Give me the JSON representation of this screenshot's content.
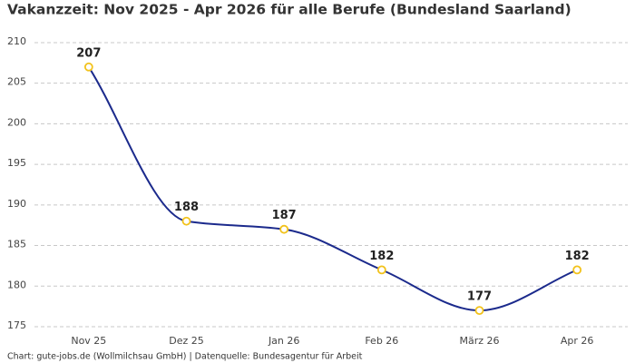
{
  "chart_data": {
    "type": "line",
    "title": "Vakanzzeit: Nov 2025 - Apr 2026 für alle Berufe (Bundesland Saarland)",
    "footer": "Chart: gute-jobs.de (Wollmilchsau GmbH) | Datenquelle: Bundesagentur für Arbeit",
    "categories": [
      "Nov 25",
      "Dez 25",
      "Jan 26",
      "Feb 26",
      "März 26",
      "Apr 26"
    ],
    "series": [
      {
        "name": "Vakanzzeit",
        "color": "#1b2a8c",
        "marker_color": "#f2c21b",
        "values": [
          207,
          188,
          187,
          182,
          177,
          182
        ]
      }
    ],
    "ylim": [
      175,
      211
    ],
    "yticks": [
      175,
      180,
      185,
      190,
      195,
      200,
      205,
      210
    ],
    "grid": true
  }
}
